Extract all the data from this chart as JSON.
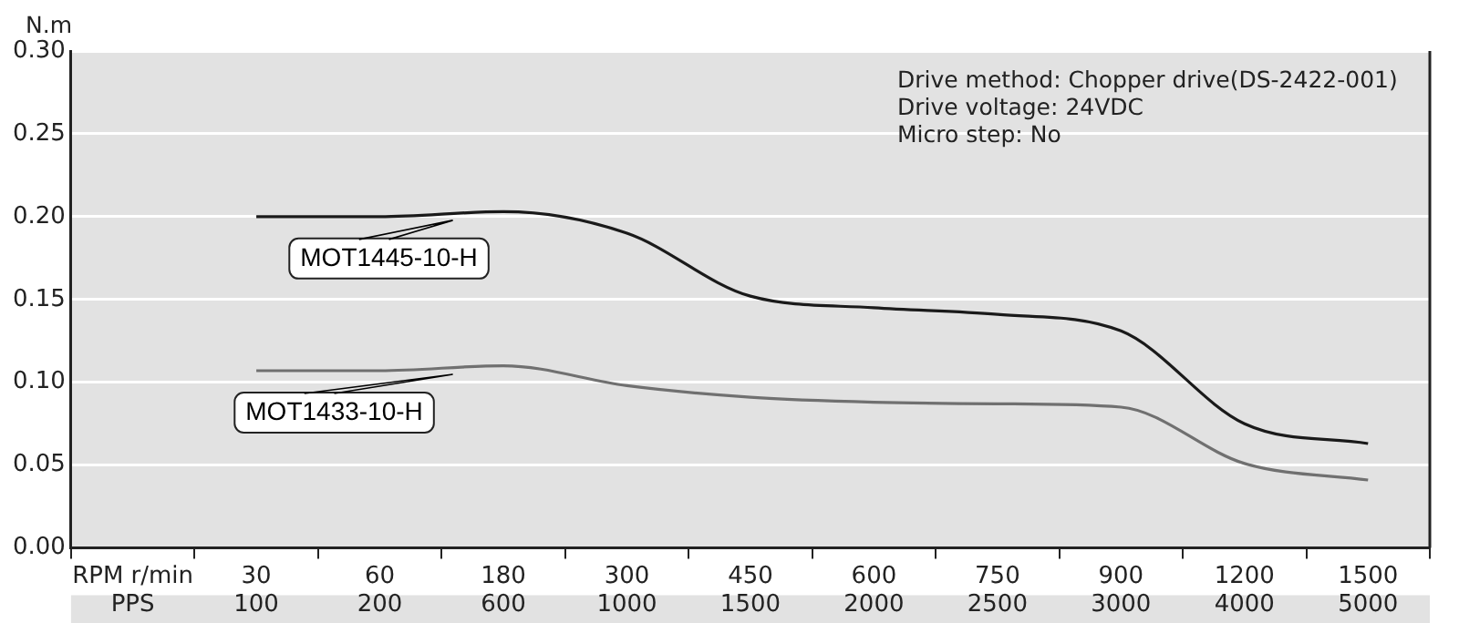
{
  "chart_data": {
    "type": "line",
    "ylabel": "N.m",
    "categories": [
      "RPM r/min\nPPS",
      "30\n100",
      "60\n200",
      "180\n600",
      "300\n1000",
      "450\n1500",
      "600\n2000",
      "750\n2500",
      "900\n3000",
      "1200\n4000",
      "1500\n5000"
    ],
    "series": [
      {
        "name": "MOT1445-10-H",
        "color": "#1a1a1a",
        "values": [
          null,
          0.2,
          0.2,
          0.203,
          0.19,
          0.152,
          0.145,
          0.141,
          0.131,
          0.075,
          0.063
        ]
      },
      {
        "name": "MOT1433-10-H",
        "color": "#707070",
        "values": [
          null,
          0.107,
          0.107,
          0.11,
          0.098,
          0.091,
          0.088,
          0.087,
          0.085,
          0.051,
          0.041
        ]
      }
    ],
    "ylim": [
      0,
      0.3
    ],
    "yticks": [
      {
        "value": 0,
        "label": "0.00"
      },
      {
        "value": 0.05,
        "label": "0.05"
      },
      {
        "value": 0.1,
        "label": "0.10"
      },
      {
        "value": 0.15,
        "label": "0.15"
      },
      {
        "value": 0.2,
        "label": "0.20"
      },
      {
        "value": 0.25,
        "label": "0.25"
      },
      {
        "value": 0.3,
        "label": "0.30"
      }
    ],
    "grid": "y",
    "legend": false,
    "marker": "none",
    "line_style": "solid",
    "annotations": [
      "Drive method: Chopper drive(DS-2422-001)",
      "Drive voltage: 24VDC",
      "Micro step: No"
    ]
  }
}
